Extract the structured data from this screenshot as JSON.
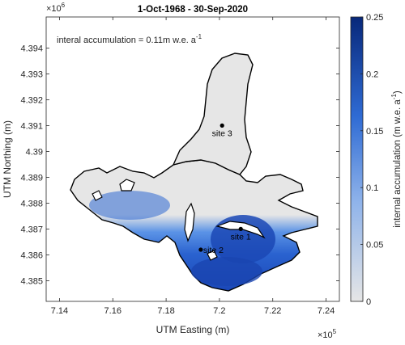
{
  "chart_data": {
    "type": "heatmap",
    "title": "1-Oct-1968 - 30-Sep-2020",
    "annotation_prefix": "interal accumulation = 0.11m w.e. a",
    "annotation_sup": "-1",
    "xlabel": "UTM Easting (m)",
    "ylabel": "UTM Northing (m)",
    "x_exponent_base": "×10",
    "x_exponent": "5",
    "y_exponent_base": "×10",
    "y_exponent": "6",
    "xlim": [
      7.135,
      7.245
    ],
    "ylim": [
      4.3842,
      4.3952
    ],
    "x_ticks": [
      7.14,
      7.16,
      7.18,
      7.2,
      7.22,
      7.24
    ],
    "x_tick_labels": [
      "7.14",
      "7.16",
      "7.18",
      "7.2",
      "7.22",
      "7.24"
    ],
    "y_ticks": [
      4.385,
      4.386,
      4.387,
      4.388,
      4.389,
      4.39,
      4.391,
      4.392,
      4.393,
      4.394
    ],
    "y_tick_labels": [
      "4.385",
      "4.386",
      "4.387",
      "4.388",
      "4.389",
      "4.39",
      "4.391",
      "4.392",
      "4.393",
      "4.394"
    ],
    "colorbar": {
      "label_prefix": "internal accumulation (m w.e. a",
      "label_sup": "-1",
      "label_suffix": ")",
      "range": [
        0,
        0.25
      ],
      "ticks": [
        0,
        0.05,
        0.1,
        0.15,
        0.2,
        0.25
      ],
      "tick_labels": [
        "0",
        "0.05",
        "0.1",
        "0.15",
        "0.2",
        "0.25"
      ],
      "color_low": "#e6e6e6",
      "color_high": "#08287a"
    },
    "sites": [
      {
        "name": "site 1",
        "x": 7.208,
        "y": 4.387
      },
      {
        "name": "site 2",
        "x": 7.193,
        "y": 4.3862
      },
      {
        "name": "site 3",
        "x": 7.201,
        "y": 4.391
      }
    ]
  }
}
